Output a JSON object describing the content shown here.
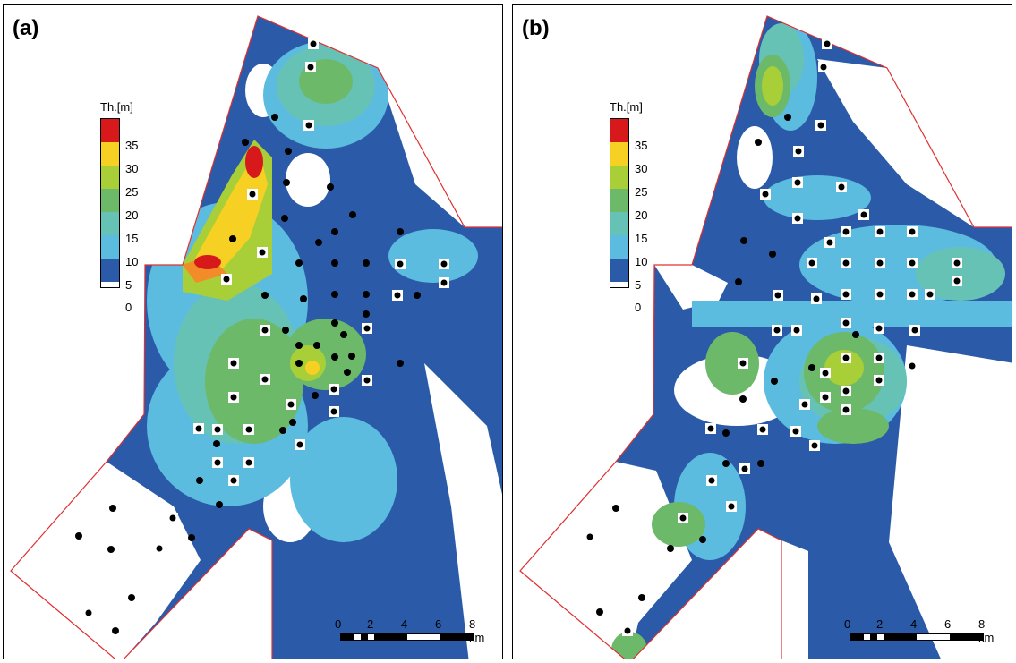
{
  "panels": [
    {
      "label": "(a)"
    },
    {
      "label": "(b)"
    }
  ],
  "legend": {
    "title": "Th.[m]",
    "ticks": [
      "35",
      "30",
      "25",
      "20",
      "15",
      "10",
      "5",
      "0"
    ],
    "colors": [
      "#d7191c",
      "#f28c28",
      "#f6d023",
      "#a9cf38",
      "#6cb96a",
      "#67c2b6",
      "#5bbce0",
      "#2b5ba8",
      "#ffffff"
    ]
  },
  "scalebar": {
    "ticks": [
      "0",
      "2",
      "4",
      "6",
      "8 km"
    ]
  },
  "colors": {
    "boundary": "#e03030",
    "deep_blue": "#2b5ba8",
    "light_blue": "#5bbce0",
    "teal": "#67c2b6",
    "green": "#6cb96a",
    "yellow_green": "#a9cf38",
    "yellow": "#f6d023",
    "red": "#d7191c"
  }
}
